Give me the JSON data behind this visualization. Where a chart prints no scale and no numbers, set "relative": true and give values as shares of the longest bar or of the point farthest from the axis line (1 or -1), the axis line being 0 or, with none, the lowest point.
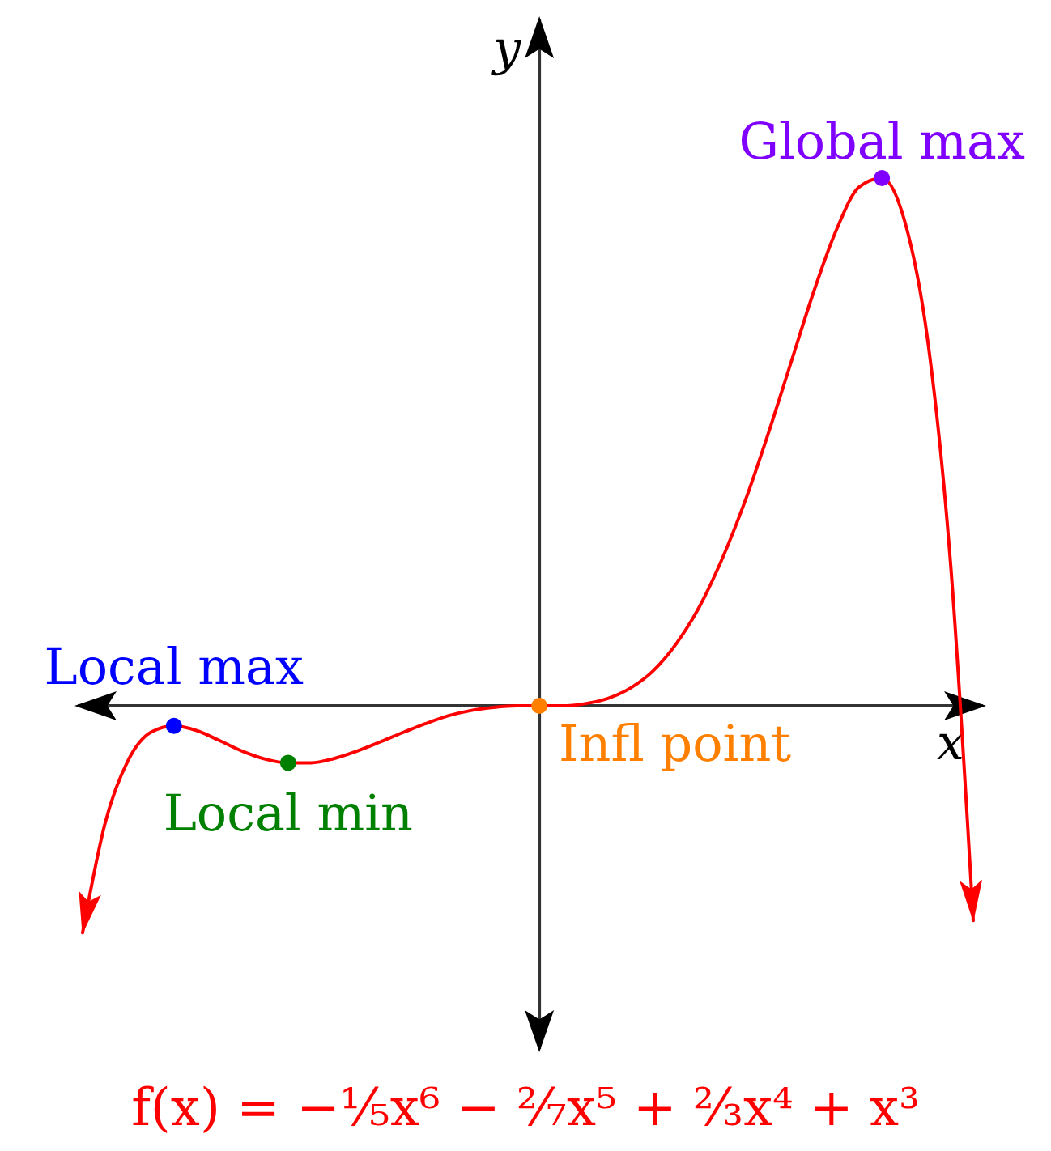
{
  "chart_data": {
    "type": "line",
    "relative": true,
    "xlabel": "x",
    "ylabel": "y",
    "annotations": [
      "f(x) = −⅕x⁶ − ²⁄₇x⁵ + ⅔x⁴ + x³"
    ],
    "categories": [
      null,
      null,
      null,
      null,
      null,
      null,
      null,
      null,
      null,
      null,
      null,
      null,
      null,
      null,
      null,
      null,
      null,
      null,
      null,
      null,
      null,
      null,
      null,
      null,
      null,
      null,
      null,
      null,
      null,
      null,
      null,
      null,
      null,
      null,
      null,
      null,
      null,
      null,
      null,
      null
    ],
    "series": [
      {
        "color": "#ff0000",
        "values": [
          -0.43,
          -0.22,
          -0.103,
          -0.05,
          -0.038,
          -0.047,
          -0.066,
          -0.086,
          -0.101,
          -0.108,
          -0.108,
          -0.1,
          -0.086,
          -0.069,
          -0.051,
          -0.034,
          -0.019,
          -0.009,
          -0.003,
          0,
          0,
          0,
          0.004,
          0.014,
          0.034,
          0.067,
          0.118,
          0.187,
          0.278,
          0.387,
          0.513,
          0.648,
          0.783,
          0.901,
          0.983,
          1,
          0.918,
          0.694,
          0.273,
          -0.407
        ]
      },
      {
        "name": "Local max",
        "marker": "circle",
        "color": "#0000ff",
        "values": [
          null,
          null,
          null,
          null,
          -0.038,
          null,
          null,
          null,
          null,
          null,
          null,
          null,
          null,
          null,
          null,
          null,
          null,
          null,
          null,
          null,
          null,
          null,
          null,
          null,
          null,
          null,
          null,
          null,
          null,
          null,
          null,
          null,
          null,
          null,
          null,
          null,
          null,
          null,
          null,
          null
        ]
      },
      {
        "name": "Local min",
        "marker": "circle",
        "color": "#008000",
        "values": [
          null,
          null,
          null,
          null,
          null,
          null,
          null,
          null,
          null,
          -0.108,
          null,
          null,
          null,
          null,
          null,
          null,
          null,
          null,
          null,
          null,
          null,
          null,
          null,
          null,
          null,
          null,
          null,
          null,
          null,
          null,
          null,
          null,
          null,
          null,
          null,
          null,
          null,
          null,
          null,
          null
        ]
      },
      {
        "name": "Infl point",
        "marker": "circle",
        "color": "#ff8000",
        "values": [
          null,
          null,
          null,
          null,
          null,
          null,
          null,
          null,
          null,
          null,
          null,
          null,
          null,
          null,
          null,
          null,
          null,
          null,
          null,
          null,
          0,
          null,
          null,
          null,
          null,
          null,
          null,
          null,
          null,
          null,
          null,
          null,
          null,
          null,
          null,
          null,
          null,
          null,
          null,
          null
        ]
      },
      {
        "name": "Global max",
        "marker": "circle",
        "color": "#8000ff",
        "values": [
          null,
          null,
          null,
          null,
          null,
          null,
          null,
          null,
          null,
          null,
          null,
          null,
          null,
          null,
          null,
          null,
          null,
          null,
          null,
          null,
          null,
          null,
          null,
          null,
          null,
          null,
          null,
          null,
          null,
          null,
          null,
          null,
          null,
          null,
          null,
          1,
          null,
          null,
          null,
          null
        ]
      }
    ]
  }
}
